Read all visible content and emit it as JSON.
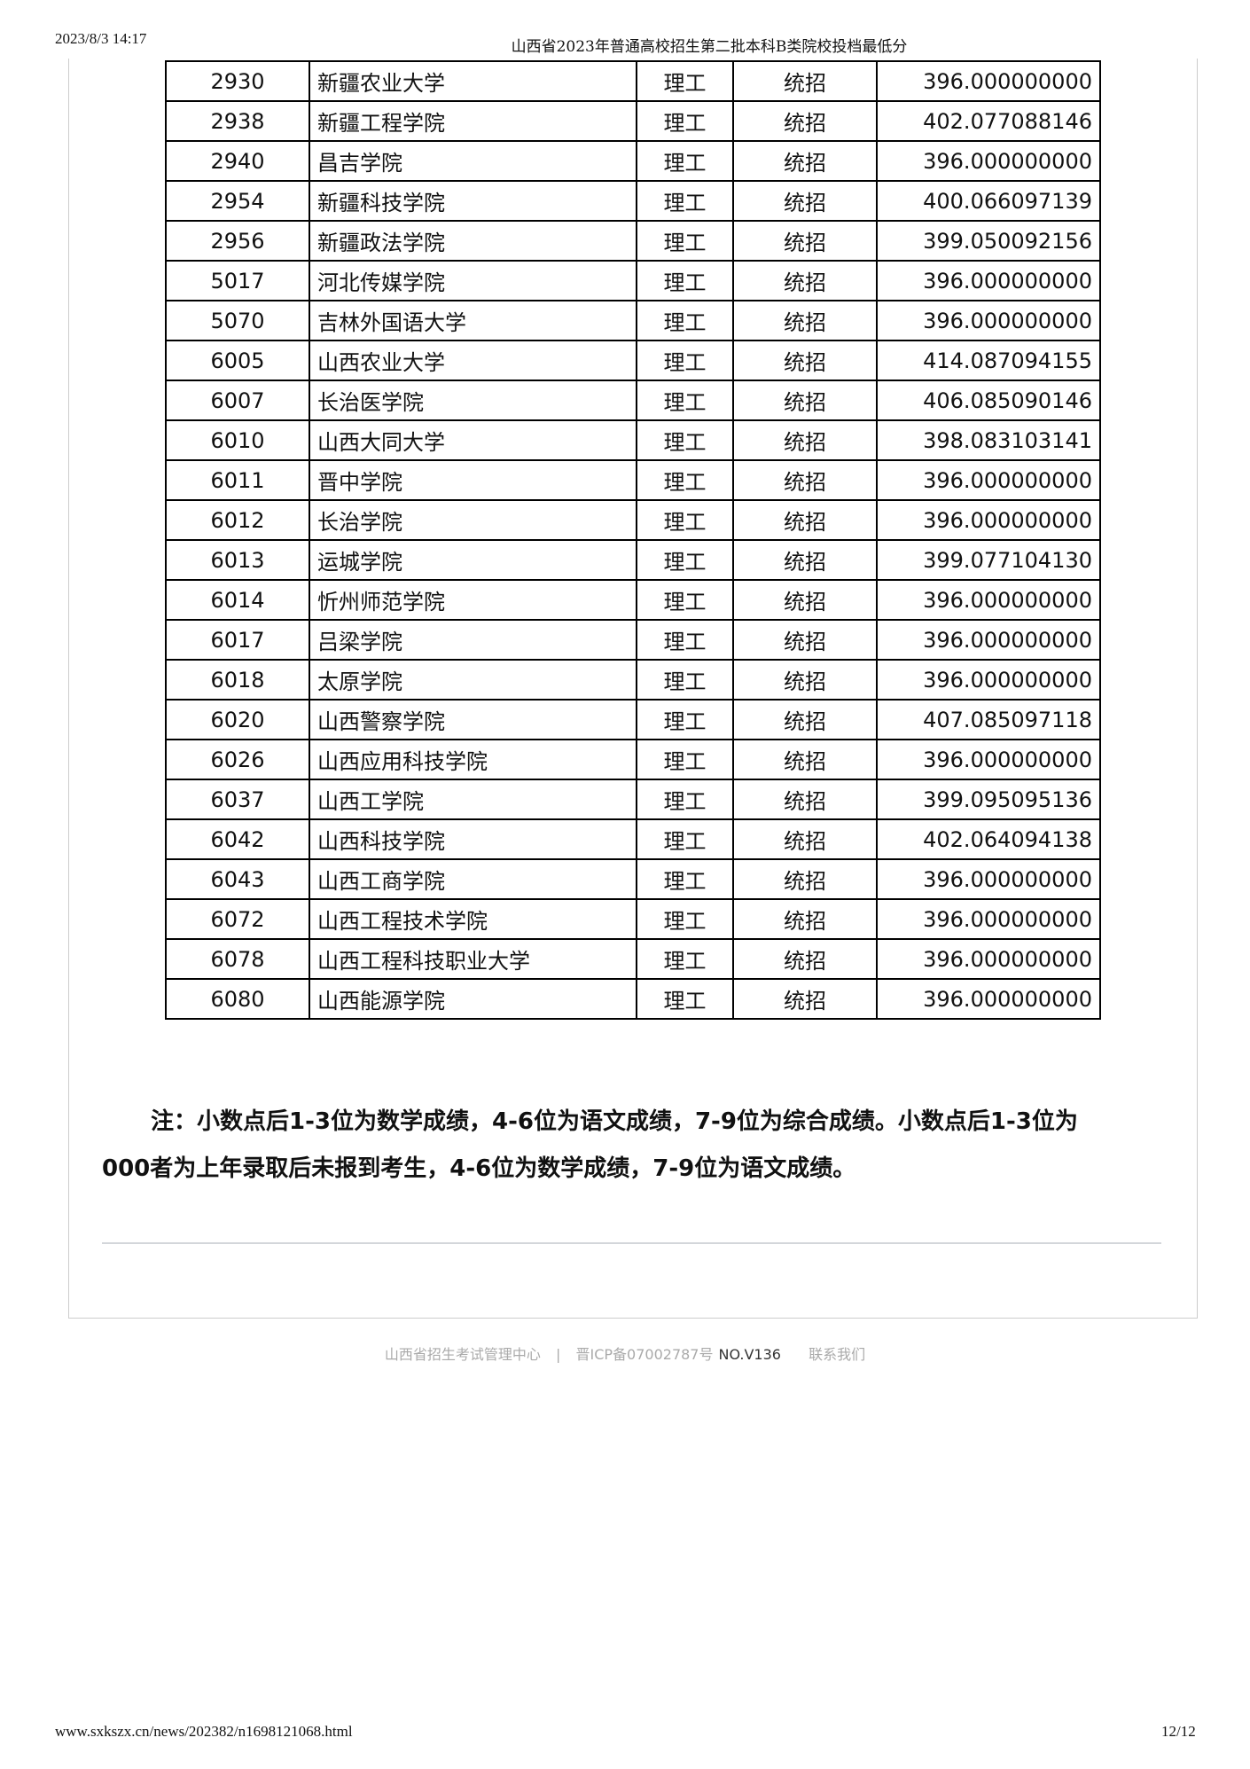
{
  "header": {
    "date": "2023/8/3 14:17",
    "title": "山西省2023年普通高校招生第二批本科B类院校投档最低分"
  },
  "table": {
    "rows": [
      [
        "2930",
        "新疆农业大学",
        "理工",
        "统招",
        "396.000000000"
      ],
      [
        "2938",
        "新疆工程学院",
        "理工",
        "统招",
        "402.077088146"
      ],
      [
        "2940",
        "昌吉学院",
        "理工",
        "统招",
        "396.000000000"
      ],
      [
        "2954",
        "新疆科技学院",
        "理工",
        "统招",
        "400.066097139"
      ],
      [
        "2956",
        "新疆政法学院",
        "理工",
        "统招",
        "399.050092156"
      ],
      [
        "5017",
        "河北传媒学院",
        "理工",
        "统招",
        "396.000000000"
      ],
      [
        "5070",
        "吉林外国语大学",
        "理工",
        "统招",
        "396.000000000"
      ],
      [
        "6005",
        "山西农业大学",
        "理工",
        "统招",
        "414.087094155"
      ],
      [
        "6007",
        "长治医学院",
        "理工",
        "统招",
        "406.085090146"
      ],
      [
        "6010",
        "山西大同大学",
        "理工",
        "统招",
        "398.083103141"
      ],
      [
        "6011",
        "晋中学院",
        "理工",
        "统招",
        "396.000000000"
      ],
      [
        "6012",
        "长治学院",
        "理工",
        "统招",
        "396.000000000"
      ],
      [
        "6013",
        "运城学院",
        "理工",
        "统招",
        "399.077104130"
      ],
      [
        "6014",
        "忻州师范学院",
        "理工",
        "统招",
        "396.000000000"
      ],
      [
        "6017",
        "吕梁学院",
        "理工",
        "统招",
        "396.000000000"
      ],
      [
        "6018",
        "太原学院",
        "理工",
        "统招",
        "396.000000000"
      ],
      [
        "6020",
        "山西警察学院",
        "理工",
        "统招",
        "407.085097118"
      ],
      [
        "6026",
        "山西应用科技学院",
        "理工",
        "统招",
        "396.000000000"
      ],
      [
        "6037",
        "山西工学院",
        "理工",
        "统招",
        "399.095095136"
      ],
      [
        "6042",
        "山西科技学院",
        "理工",
        "统招",
        "402.064094138"
      ],
      [
        "6043",
        "山西工商学院",
        "理工",
        "统招",
        "396.000000000"
      ],
      [
        "6072",
        "山西工程技术学院",
        "理工",
        "统招",
        "396.000000000"
      ],
      [
        "6078",
        "山西工程科技职业大学",
        "理工",
        "统招",
        "396.000000000"
      ],
      [
        "6080",
        "山西能源学院",
        "理工",
        "统招",
        "396.000000000"
      ]
    ]
  },
  "note": {
    "line1": "注：小数点后1-3位为数学成绩，4-6位为语文成绩，7-9位为综合成绩。小数点后1-3位为",
    "line2": "000者为上年录取后未报到考生，4-6位为数学成绩，7-9位为语文成绩。"
  },
  "footer": {
    "org": "山西省招生考试管理中心",
    "sep": "|",
    "icp": "晋ICP备07002787号",
    "version": "NO.V136",
    "contact": "联系我们"
  },
  "print_footer": {
    "url": "www.sxkszx.cn/news/202382/n1698121068.html",
    "page": "12/12"
  }
}
